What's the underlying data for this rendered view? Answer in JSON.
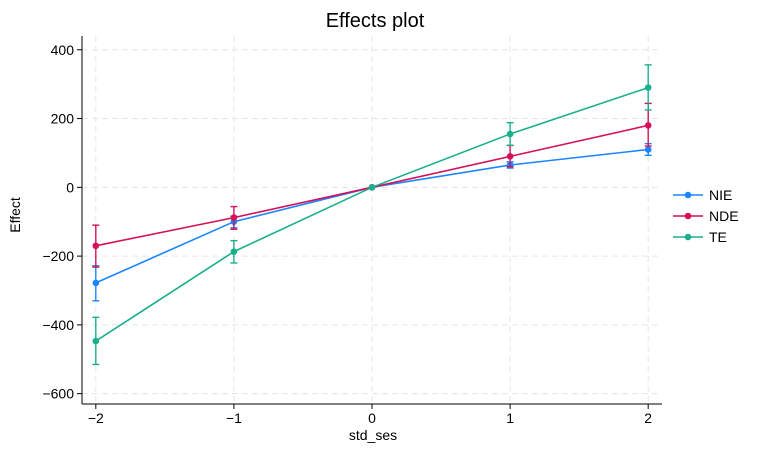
{
  "chart_data": {
    "type": "line",
    "title": "Effects plot",
    "xlabel": "std_ses",
    "ylabel": "Effect",
    "x": [
      -2,
      -1,
      0,
      1,
      2
    ],
    "xlim": [
      -2.1,
      2.1
    ],
    "ylim": [
      -630,
      440
    ],
    "xticks": [
      -2,
      -1,
      0,
      1,
      2
    ],
    "xtick_labels": [
      "−2",
      "−1",
      "0",
      "1",
      "2"
    ],
    "yticks": [
      400,
      200,
      0,
      -200,
      -400,
      -600
    ],
    "ytick_labels": [
      "400",
      "200",
      "0",
      "−200",
      "−400",
      "−600"
    ],
    "grid": true,
    "legend_position": "right",
    "series": [
      {
        "name": "NIE",
        "color": "#1a85ff",
        "values": [
          -278,
          -100,
          0,
          65,
          110
        ],
        "ci_low": [
          -330,
          -118,
          0,
          56,
          93
        ],
        "ci_high": [
          -228,
          -84,
          0,
          74,
          127
        ]
      },
      {
        "name": "NDE",
        "color": "#d41159",
        "values": [
          -170,
          -88,
          0,
          90,
          180
        ],
        "ci_low": [
          -232,
          -122,
          0,
          60,
          120
        ],
        "ci_high": [
          -110,
          -56,
          0,
          122,
          244
        ]
      },
      {
        "name": "TE",
        "color": "#1aaf8c",
        "values": [
          -447,
          -187,
          0,
          155,
          290
        ],
        "ci_low": [
          -515,
          -220,
          0,
          122,
          225
        ],
        "ci_high": [
          -378,
          -155,
          0,
          188,
          356
        ]
      }
    ]
  }
}
